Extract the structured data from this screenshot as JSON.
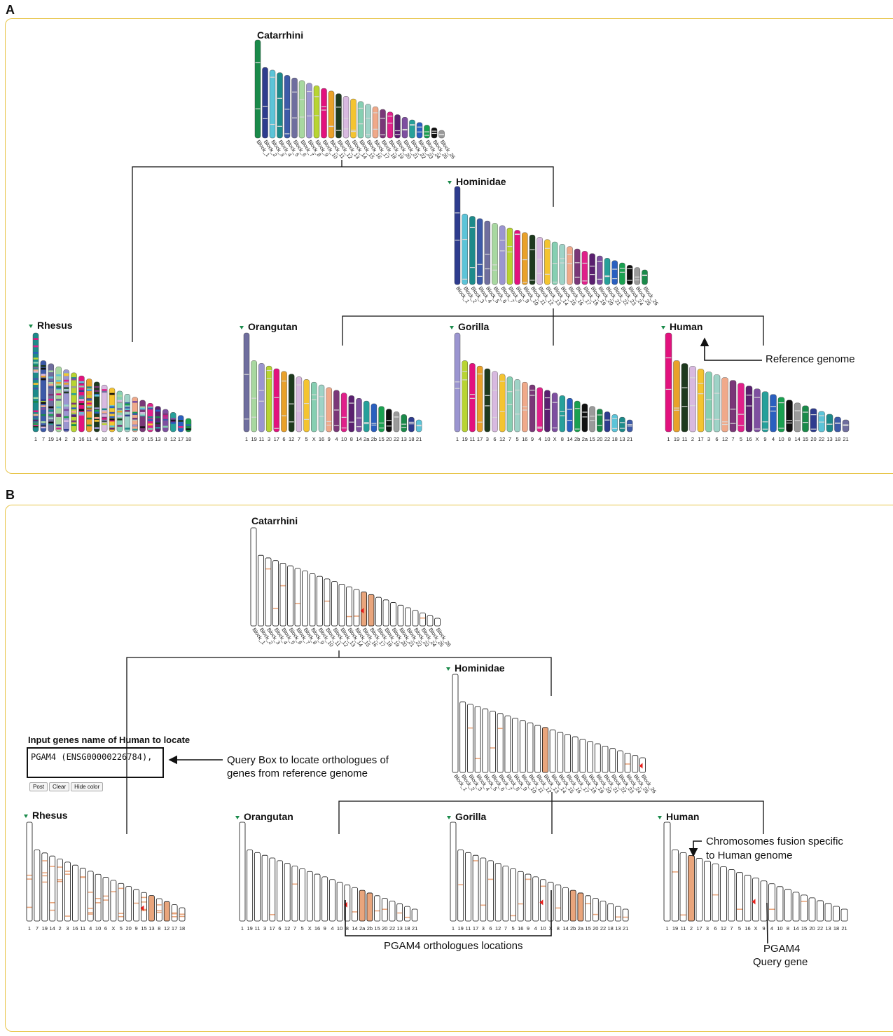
{
  "panels": {
    "a_label": "A",
    "b_label": "B"
  },
  "species": {
    "catarrhini": "Catarrhini",
    "hominidae": "Hominidae",
    "rhesus": "Rhesus",
    "orangutan": "Orangutan",
    "gorilla": "Gorilla",
    "human": "Human"
  },
  "labels": {
    "catarrhini": [
      "Block_1",
      "Block_2",
      "Block_3",
      "Block_4",
      "Block_5",
      "Block_6",
      "Block_7",
      "Block_8",
      "Block_9",
      "Block_10",
      "Block_11",
      "Block_12",
      "Block_13",
      "Block_14",
      "Block_15",
      "Block_16",
      "Block_17",
      "Block_18",
      "Block_19",
      "Block_20",
      "Block_21",
      "Block_22",
      "Block_23",
      "Block_24",
      "Block_25",
      "Block_26"
    ],
    "hominidae": [
      "Block_1",
      "Block_2",
      "Block_3",
      "Block_4",
      "Block_5",
      "Block_6",
      "Block_7",
      "Block_8",
      "Block_9",
      "Block_10",
      "Block_11",
      "Block_12",
      "Block_13",
      "Block_14",
      "Block_15",
      "Block_16",
      "Block_17",
      "Block_18",
      "Block_19",
      "Block_20",
      "Block_21",
      "Block_22",
      "Block_23",
      "Block_24",
      "Block_25",
      "Block_26"
    ],
    "rhesus": [
      "1",
      "7",
      "19",
      "14",
      "2",
      "3",
      "16",
      "11",
      "4",
      "10",
      "6",
      "X",
      "5",
      "20",
      "9",
      "15",
      "13",
      "8",
      "12",
      "17",
      "18"
    ],
    "orangutan": [
      "1",
      "19",
      "11",
      "3",
      "17",
      "6",
      "12",
      "7",
      "5",
      "X",
      "16",
      "9",
      "4",
      "10",
      "8",
      "14",
      "2a",
      "2b",
      "15",
      "20",
      "22",
      "13",
      "18",
      "21"
    ],
    "gorilla": [
      "1",
      "19",
      "11",
      "17",
      "3",
      "6",
      "12",
      "7",
      "5",
      "16",
      "9",
      "4",
      "10",
      "X",
      "8",
      "14",
      "2b",
      "2a",
      "15",
      "20",
      "22",
      "18",
      "13",
      "21"
    ],
    "human": [
      "1",
      "19",
      "11",
      "2",
      "17",
      "3",
      "6",
      "12",
      "7",
      "5",
      "16",
      "X",
      "9",
      "4",
      "10",
      "8",
      "14",
      "15",
      "20",
      "22",
      "13",
      "18",
      "21"
    ]
  },
  "annotations": {
    "reference_genome": "Reference genome",
    "fusion_line1": "Chromosomes fusion specific",
    "fusion_line2": "to Human genome",
    "orthologues": "PGAM4 orthologues locations",
    "query_gene_line1": "PGAM4",
    "query_gene_line2": "Query gene",
    "query_box_line1": "Query Box to locate orthologues of",
    "query_box_line2": "genes from reference genome"
  },
  "query": {
    "title": "Input genes name of Human to locate",
    "value": "PGAM4 (ENSG00000226784),",
    "post": "Post",
    "clear": "Clear",
    "hide_color": "Hide color"
  },
  "colors": {
    "frame": "#e8c54a",
    "highlight": "#e9a57c",
    "marker": "#e8201c",
    "palette": [
      "#1a8a4a",
      "#2e3c8e",
      "#5cc4d8",
      "#1d8a8a",
      "#3d5aa8",
      "#6f6e9e",
      "#a8d8a0",
      "#9b95d0",
      "#b8d432",
      "#e2127e",
      "#e9a12a",
      "#1e3a1e",
      "#d8b9e0",
      "#f4c430",
      "#86cfb2",
      "#9fd3c7",
      "#f0a98a",
      "#7a3778",
      "#e0208a",
      "#5a2070",
      "#7e4fa0",
      "#27a09a",
      "#2a5fbf",
      "#1aa050",
      "#111111",
      "#9a9a9a"
    ]
  }
}
